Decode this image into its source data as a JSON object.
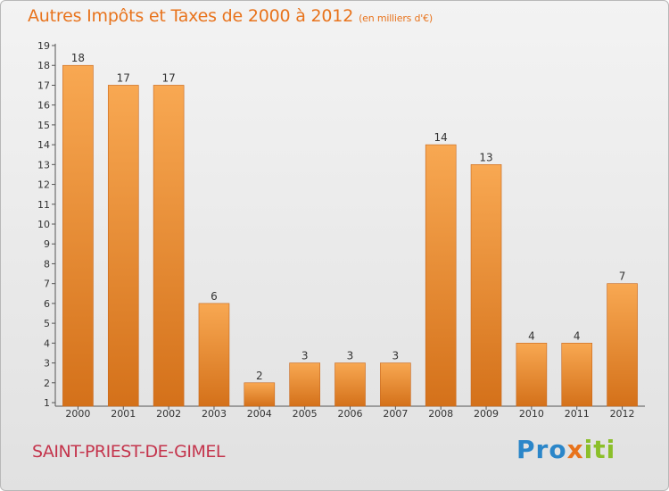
{
  "header": {
    "title": "Autres Impôts et Taxes de 2000 à 2012",
    "subtitle": "(en milliers d'€)"
  },
  "footer": {
    "commune": "SAINT-PRIEST-DE-GIMEL",
    "logo": {
      "part1": "Pro",
      "part2": "x",
      "part3": "iti"
    }
  },
  "colors": {
    "bar_light": "#f8a852",
    "bar_dark": "#d4711a",
    "title": "#e8731c",
    "commune": "#c4344c"
  },
  "chart_data": {
    "type": "bar",
    "title": "Autres Impôts et Taxes de 2000 à 2012",
    "subtitle": "(en milliers d'€)",
    "xlabel": "",
    "ylabel": "",
    "categories": [
      "2000",
      "2001",
      "2002",
      "2003",
      "2004",
      "2005",
      "2006",
      "2007",
      "2008",
      "2009",
      "2010",
      "2011",
      "2012"
    ],
    "values": [
      18,
      17,
      17,
      6,
      2,
      3,
      3,
      3,
      14,
      13,
      4,
      4,
      7
    ],
    "ylim": [
      1,
      19
    ],
    "yticks": [
      1,
      2,
      3,
      4,
      5,
      6,
      7,
      8,
      9,
      10,
      11,
      12,
      13,
      14,
      15,
      16,
      17,
      18,
      19
    ],
    "grid": false,
    "data_labels": true
  }
}
